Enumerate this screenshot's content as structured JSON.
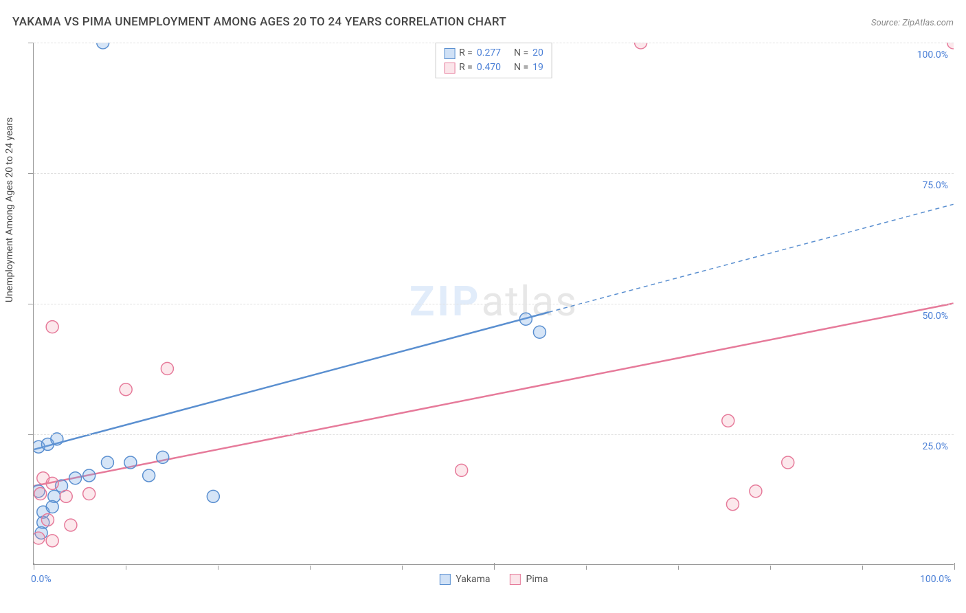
{
  "title": "YAKAMA VS PIMA UNEMPLOYMENT AMONG AGES 20 TO 24 YEARS CORRELATION CHART",
  "source": "Source: ZipAtlas.com",
  "ylabel": "Unemployment Among Ages 20 to 24 years",
  "watermark": {
    "zip": "ZIP",
    "atlas": "atlas"
  },
  "chart": {
    "type": "scatter",
    "background_color": "#ffffff",
    "grid_color": "#e0e0e0",
    "axis_color": "#999999",
    "tick_label_color": "#4a7fd6",
    "tick_fontsize": 14,
    "xlim": [
      0,
      100
    ],
    "ylim": [
      0,
      100
    ],
    "x_ticks_major": [
      0,
      50,
      100
    ],
    "x_ticks_minor": [
      10,
      20,
      30,
      40,
      60,
      70,
      80,
      90
    ],
    "y_gridlines": [
      25,
      50,
      75,
      100
    ],
    "x_axis_labels": [
      {
        "v": 0,
        "t": "0.0%"
      },
      {
        "v": 100,
        "t": "100.0%"
      }
    ],
    "y_axis_labels": [
      {
        "v": 25,
        "t": "25.0%"
      },
      {
        "v": 50,
        "t": "50.0%"
      },
      {
        "v": 75,
        "t": "75.0%"
      },
      {
        "v": 100,
        "t": "100.0%"
      }
    ],
    "marker_radius": 9,
    "marker_stroke_width": 1.5,
    "series": [
      {
        "name": "Yakama",
        "color_stroke": "#5a8fd0",
        "color_fill": "rgba(120,170,230,0.30)",
        "trend": {
          "intercept": 22,
          "slope": 0.47,
          "solid_end_x": 56,
          "line_width": 2.5
        },
        "R": "0.277",
        "N": "20",
        "points": [
          {
            "x": 7.5,
            "y": 100
          },
          {
            "x": 0.5,
            "y": 22.5
          },
          {
            "x": 1.5,
            "y": 23
          },
          {
            "x": 2.5,
            "y": 24
          },
          {
            "x": 2.2,
            "y": 13
          },
          {
            "x": 1.0,
            "y": 8
          },
          {
            "x": 1.0,
            "y": 10
          },
          {
            "x": 2.0,
            "y": 11
          },
          {
            "x": 3.0,
            "y": 15
          },
          {
            "x": 4.5,
            "y": 16.5
          },
          {
            "x": 6.0,
            "y": 17
          },
          {
            "x": 8.0,
            "y": 19.5
          },
          {
            "x": 10.5,
            "y": 19.5
          },
          {
            "x": 12.5,
            "y": 17
          },
          {
            "x": 14.0,
            "y": 20.5
          },
          {
            "x": 19.5,
            "y": 13
          },
          {
            "x": 53.5,
            "y": 47
          },
          {
            "x": 55.0,
            "y": 44.5
          },
          {
            "x": 0.5,
            "y": 14
          },
          {
            "x": 0.8,
            "y": 6
          }
        ]
      },
      {
        "name": "Pima",
        "color_stroke": "#e67a9a",
        "color_fill": "rgba(240,150,170,0.22)",
        "trend": {
          "intercept": 15,
          "slope": 0.35,
          "solid_end_x": 100,
          "line_width": 2.5
        },
        "R": "0.470",
        "N": "19",
        "points": [
          {
            "x": 66,
            "y": 100
          },
          {
            "x": 100,
            "y": 100
          },
          {
            "x": 2.0,
            "y": 45.5
          },
          {
            "x": 14.5,
            "y": 37.5
          },
          {
            "x": 10.0,
            "y": 33.5
          },
          {
            "x": 1.0,
            "y": 16.5
          },
          {
            "x": 2.0,
            "y": 15.5
          },
          {
            "x": 0.7,
            "y": 13.5
          },
          {
            "x": 3.5,
            "y": 13
          },
          {
            "x": 6.0,
            "y": 13.5
          },
          {
            "x": 1.5,
            "y": 8.5
          },
          {
            "x": 4.0,
            "y": 7.5
          },
          {
            "x": 0.5,
            "y": 5
          },
          {
            "x": 2.0,
            "y": 4.5
          },
          {
            "x": 46.5,
            "y": 18
          },
          {
            "x": 76.0,
            "y": 11.5
          },
          {
            "x": 78.5,
            "y": 14
          },
          {
            "x": 82.0,
            "y": 19.5
          },
          {
            "x": 75.5,
            "y": 27.5
          }
        ]
      }
    ],
    "legend_bottom": [
      {
        "swatch": "blue",
        "label": "Yakama"
      },
      {
        "swatch": "pink",
        "label": "Pima"
      }
    ],
    "legend_top": [
      {
        "swatch": "blue",
        "R_label": "R  =",
        "R": "0.277",
        "N_label": "N  =",
        "N": "20"
      },
      {
        "swatch": "pink",
        "R_label": "R  =",
        "R": "0.470",
        "N_label": "N  =",
        "N": "19"
      }
    ]
  }
}
